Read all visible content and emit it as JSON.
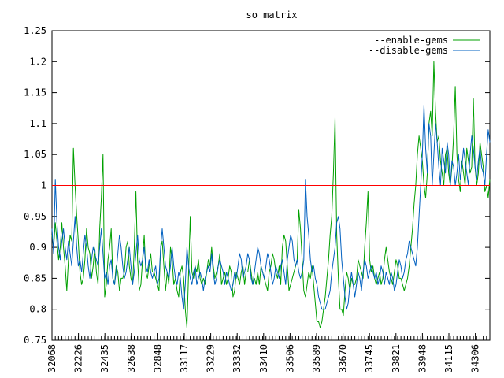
{
  "chart_data": {
    "type": "line",
    "title": "so_matrix",
    "xlabel": "",
    "ylabel": "",
    "ylim": [
      0.75,
      1.25
    ],
    "y_ticks": [
      "0.75",
      "0.8",
      "0.85",
      "0.9",
      "0.95",
      "1",
      "1.05",
      "1.1",
      "1.15",
      "1.2",
      "1.25"
    ],
    "x_tick_labels": [
      "32068",
      "32226",
      "32435",
      "32638",
      "32848",
      "33117",
      "33229",
      "33332",
      "33410",
      "33506",
      "33589",
      "33670",
      "33745",
      "33821",
      "33948",
      "34115",
      "34306"
    ],
    "x_tick_count": 17,
    "legend_position": "top-right",
    "grid": false,
    "reference_line": {
      "value": 1.0,
      "color": "#ff0000"
    },
    "series": [
      {
        "name": "--enable-gems",
        "color": "#00a000",
        "values": [
          0.92,
          0.9,
          0.94,
          0.91,
          0.88,
          0.9,
          0.94,
          0.9,
          0.87,
          0.83,
          0.88,
          0.92,
          0.91,
          1.06,
          1.0,
          0.95,
          0.91,
          0.86,
          0.84,
          0.85,
          0.88,
          0.93,
          0.9,
          0.89,
          0.85,
          0.87,
          0.9,
          0.86,
          0.84,
          0.93,
          0.98,
          1.05,
          0.82,
          0.84,
          0.88,
          0.9,
          0.93,
          0.85,
          0.84,
          0.87,
          0.86,
          0.83,
          0.85,
          0.85,
          0.86,
          0.9,
          0.91,
          0.87,
          0.85,
          0.84,
          0.9,
          0.99,
          0.88,
          0.83,
          0.84,
          0.88,
          0.92,
          0.86,
          0.85,
          0.87,
          0.89,
          0.86,
          0.86,
          0.85,
          0.84,
          0.83,
          0.9,
          0.91,
          0.87,
          0.83,
          0.86,
          0.84,
          0.9,
          0.88,
          0.84,
          0.85,
          0.83,
          0.82,
          0.86,
          0.87,
          0.85,
          0.8,
          0.77,
          0.86,
          0.95,
          0.86,
          0.85,
          0.87,
          0.86,
          0.88,
          0.85,
          0.84,
          0.85,
          0.84,
          0.86,
          0.88,
          0.87,
          0.9,
          0.87,
          0.85,
          0.86,
          0.87,
          0.89,
          0.84,
          0.85,
          0.86,
          0.84,
          0.85,
          0.87,
          0.86,
          0.82,
          0.83,
          0.86,
          0.85,
          0.84,
          0.86,
          0.87,
          0.84,
          0.86,
          0.86,
          0.88,
          0.86,
          0.84,
          0.85,
          0.84,
          0.86,
          0.84,
          0.87,
          0.86,
          0.85,
          0.84,
          0.83,
          0.86,
          0.87,
          0.89,
          0.88,
          0.86,
          0.85,
          0.87,
          0.84,
          0.9,
          0.92,
          0.91,
          0.87,
          0.83,
          0.84,
          0.85,
          0.86,
          0.87,
          0.88,
          0.96,
          0.93,
          0.88,
          0.83,
          0.82,
          0.84,
          0.86,
          0.85,
          0.87,
          0.84,
          0.81,
          0.78,
          0.78,
          0.77,
          0.78,
          0.8,
          0.82,
          0.85,
          0.88,
          0.92,
          0.95,
          1.02,
          1.11,
          0.92,
          0.85,
          0.8,
          0.8,
          0.79,
          0.83,
          0.86,
          0.85,
          0.83,
          0.85,
          0.84,
          0.84,
          0.85,
          0.88,
          0.87,
          0.86,
          0.85,
          0.9,
          0.94,
          0.99,
          0.88,
          0.86,
          0.87,
          0.85,
          0.84,
          0.85,
          0.86,
          0.84,
          0.85,
          0.88,
          0.9,
          0.88,
          0.86,
          0.85,
          0.84,
          0.86,
          0.88,
          0.87,
          0.85,
          0.85,
          0.84,
          0.83,
          0.84,
          0.85,
          0.87,
          0.9,
          0.93,
          0.97,
          1.0,
          1.05,
          1.08,
          1.06,
          1.04,
          1.0,
          0.98,
          1.02,
          1.1,
          1.12,
          1.08,
          1.2,
          1.12,
          1.07,
          1.08,
          1.04,
          1.02,
          1.0,
          1.05,
          1.06,
          1.02,
          1.0,
          1.03,
          1.08,
          1.16,
          1.05,
          1.01,
          0.99,
          1.04,
          1.02,
          1.0,
          1.06,
          1.04,
          1.02,
          1.03,
          1.14,
          1.03,
          1.0,
          1.02,
          1.07,
          1.05,
          1.03,
          0.99,
          1.0,
          0.98,
          1.01
        ],
        "x_range_fraction": [
          0.0,
          1.0
        ]
      },
      {
        "name": "--disable-gems",
        "color": "#0060c0",
        "values": [
          0.93,
          0.89,
          1.01,
          0.94,
          0.9,
          0.88,
          0.91,
          0.93,
          0.9,
          0.88,
          0.91,
          0.89,
          0.87,
          0.91,
          0.95,
          0.9,
          0.87,
          0.88,
          0.86,
          0.89,
          0.92,
          0.9,
          0.87,
          0.85,
          0.88,
          0.9,
          0.89,
          0.88,
          0.87,
          0.9,
          0.93,
          0.89,
          0.85,
          0.86,
          0.84,
          0.87,
          0.88,
          0.85,
          0.84,
          0.86,
          0.89,
          0.92,
          0.9,
          0.87,
          0.85,
          0.86,
          0.88,
          0.9,
          0.87,
          0.84,
          0.86,
          0.89,
          0.92,
          0.88,
          0.87,
          0.88,
          0.9,
          0.87,
          0.86,
          0.88,
          0.86,
          0.85,
          0.86,
          0.87,
          0.84,
          0.85,
          0.9,
          0.93,
          0.9,
          0.87,
          0.86,
          0.85,
          0.87,
          0.9,
          0.87,
          0.85,
          0.84,
          0.86,
          0.85,
          0.82,
          0.8,
          0.84,
          0.9,
          0.87,
          0.85,
          0.84,
          0.86,
          0.87,
          0.84,
          0.85,
          0.86,
          0.85,
          0.83,
          0.85,
          0.86,
          0.87,
          0.86,
          0.89,
          0.86,
          0.84,
          0.85,
          0.87,
          0.88,
          0.87,
          0.86,
          0.84,
          0.86,
          0.85,
          0.84,
          0.83,
          0.84,
          0.86,
          0.85,
          0.87,
          0.89,
          0.88,
          0.85,
          0.86,
          0.87,
          0.89,
          0.88,
          0.85,
          0.84,
          0.86,
          0.88,
          0.9,
          0.89,
          0.87,
          0.86,
          0.85,
          0.87,
          0.89,
          0.88,
          0.86,
          0.84,
          0.85,
          0.87,
          0.86,
          0.85,
          0.87,
          0.88,
          0.86,
          0.84,
          0.88,
          0.9,
          0.92,
          0.91,
          0.88,
          0.87,
          0.88,
          0.86,
          0.85,
          0.86,
          0.88,
          1.01,
          0.95,
          0.92,
          0.88,
          0.86,
          0.87,
          0.85,
          0.84,
          0.82,
          0.81,
          0.8,
          0.8,
          0.8,
          0.81,
          0.82,
          0.83,
          0.86,
          0.88,
          0.9,
          0.94,
          0.95,
          0.93,
          0.88,
          0.85,
          0.82,
          0.8,
          0.81,
          0.84,
          0.86,
          0.84,
          0.82,
          0.84,
          0.86,
          0.85,
          0.83,
          0.86,
          0.88,
          0.87,
          0.85,
          0.86,
          0.87,
          0.86,
          0.85,
          0.86,
          0.84,
          0.85,
          0.87,
          0.86,
          0.84,
          0.86,
          0.85,
          0.84,
          0.86,
          0.85,
          0.83,
          0.84,
          0.86,
          0.88,
          0.87,
          0.85,
          0.86,
          0.88,
          0.89,
          0.91,
          0.9,
          0.89,
          0.88,
          0.87,
          0.9,
          0.95,
          1.0,
          1.05,
          1.13,
          1.06,
          1.02,
          1.1,
          1.08,
          1.0,
          1.05,
          1.1,
          1.07,
          1.03,
          1.0,
          1.06,
          1.04,
          1.02,
          1.07,
          1.05,
          1.0,
          1.04,
          1.03,
          1.0,
          1.02,
          1.05,
          1.01,
          1.03,
          1.06,
          1.04,
          1.02,
          1.0,
          1.05,
          1.08,
          1.06,
          1.03,
          1.01,
          1.04,
          1.06,
          1.03,
          1.02,
          1.0,
          1.05,
          1.09,
          1.07
        ],
        "x_range_fraction": [
          0.0,
          1.0
        ]
      }
    ]
  }
}
